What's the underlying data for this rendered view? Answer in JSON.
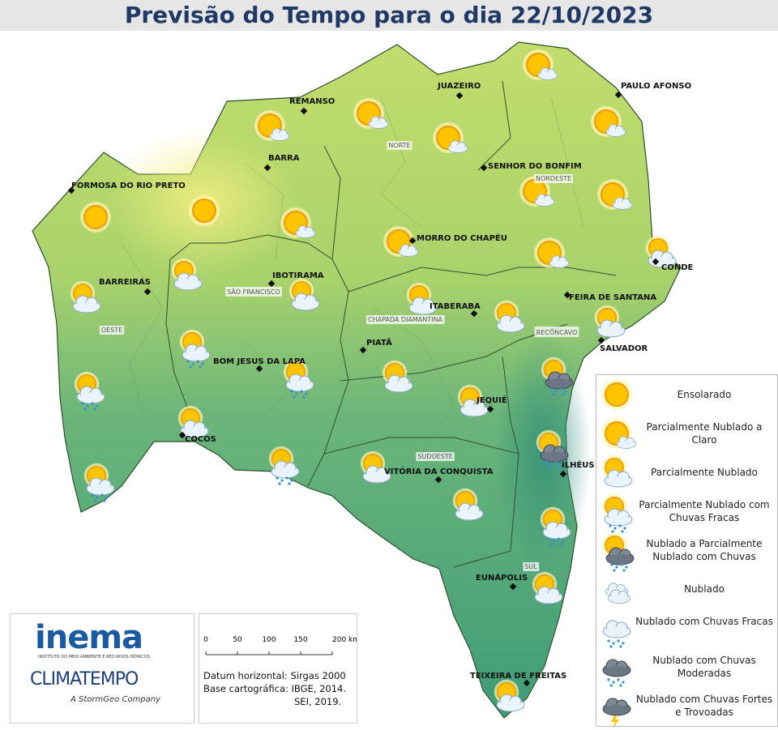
{
  "header": {
    "title": "Previsão do Tempo para o dia 22/10/2023"
  },
  "cities": [
    "FORMOSA DO RIO PRETO",
    "REMANSO",
    "JUAZEIRO",
    "PAULO AFONSO",
    "BARRA",
    "SENHOR DO BONFIM",
    "MORRO DO CHAPÉU",
    "BARREIRAS",
    "IBOTIRAMA",
    "CONDE",
    "FEIRA DE SANTANA",
    "ITABERABA",
    "SALVADOR",
    "PIATÃ",
    "BOM JESUS DA LAPA",
    "JEQUIÉ",
    "COCOS",
    "VITÓRIA DA CONQUISTA",
    "ILHÉUS",
    "EUNÁPOLIS",
    "TEIXEIRA DE FREITAS"
  ],
  "regions": [
    "NORTE",
    "NORDESTE",
    "OESTE",
    "SÃO FRANCISCO",
    "CHAPADA DIAMANTINA",
    "RECÔNCAVO",
    "SUDOESTE",
    "SUL"
  ],
  "legend": [
    "Ensolarado",
    "Parcialmente Nublado a Claro",
    "Parcialmente Nublado",
    "Parcialmente Nublado com Chuvas Fracas",
    "Nublado a Parcialmente Nublado com Chuvas",
    "Nublado",
    "Nublado com Chuvas Fracas",
    "Nublado com Chuvas Moderadas",
    "Nublado com Chuvas Fortes e Trovoadas"
  ],
  "logos": {
    "inema": "inema",
    "inema_subtitle": "INSTITUTO DO MEIO AMBIENTE E RECURSOS HÍDRICOS",
    "climatempo": "CLIMATEMPO",
    "climatempo_subtitle": "A StormGeo Company"
  },
  "scale": {
    "labels": [
      "0",
      "50",
      "100",
      "150",
      "200 km"
    ]
  },
  "credits": [
    "Datum horizontal: Sirgas 2000",
    "Base cartográfica: IBGE, 2014.",
    "SEI, 2019."
  ]
}
